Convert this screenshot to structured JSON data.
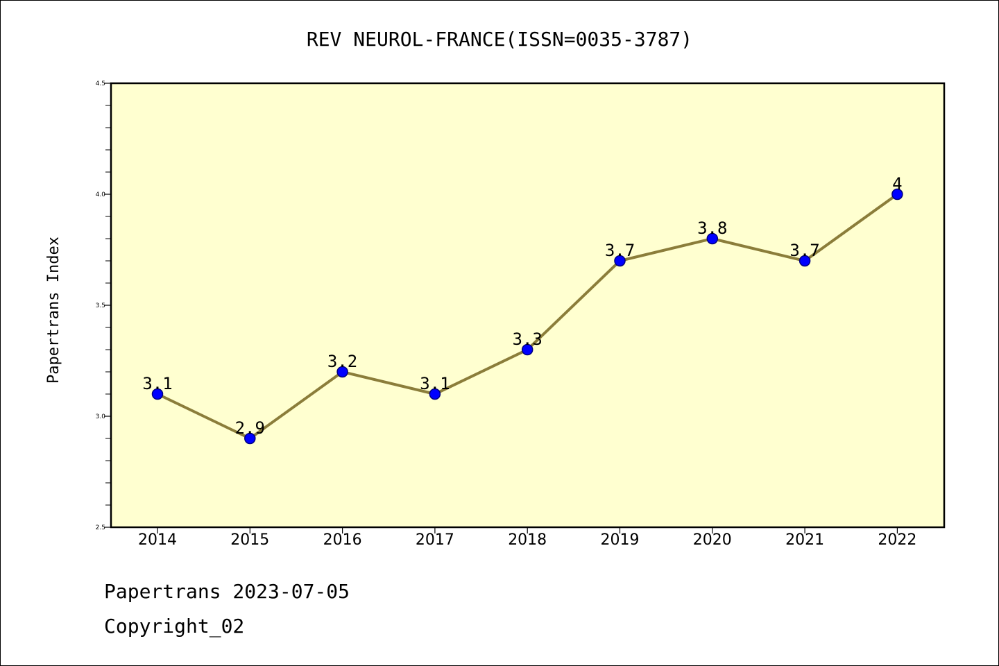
{
  "chart_data": {
    "type": "line",
    "title": "REV NEUROL-FRANCE(ISSN=0035-3787)",
    "xlabel": "",
    "ylabel": "Papertrans Index",
    "categories": [
      "2014",
      "2015",
      "2016",
      "2017",
      "2018",
      "2019",
      "2020",
      "2021",
      "2022"
    ],
    "values": [
      3.1,
      2.9,
      3.2,
      3.1,
      3.3,
      3.7,
      3.8,
      3.7,
      4
    ],
    "data_labels": [
      "3.1",
      "2.9",
      "3.2",
      "3.1",
      "3.3",
      "3.7",
      "3.8",
      "3.7",
      "4"
    ],
    "ylim": [
      2.5,
      4.5
    ],
    "y_ticks": [
      "2.5",
      "3.0",
      "3.5",
      "4.0",
      "4.5"
    ],
    "grid": false,
    "legend": "none",
    "colors": {
      "plot_background": "#ffffd0",
      "line": "#8b7d3a",
      "marker_fill": "#0000ff",
      "marker_stroke": "#000080"
    }
  },
  "footer": {
    "line1": "Papertrans 2023-07-05",
    "line2": "Copyright_02"
  }
}
